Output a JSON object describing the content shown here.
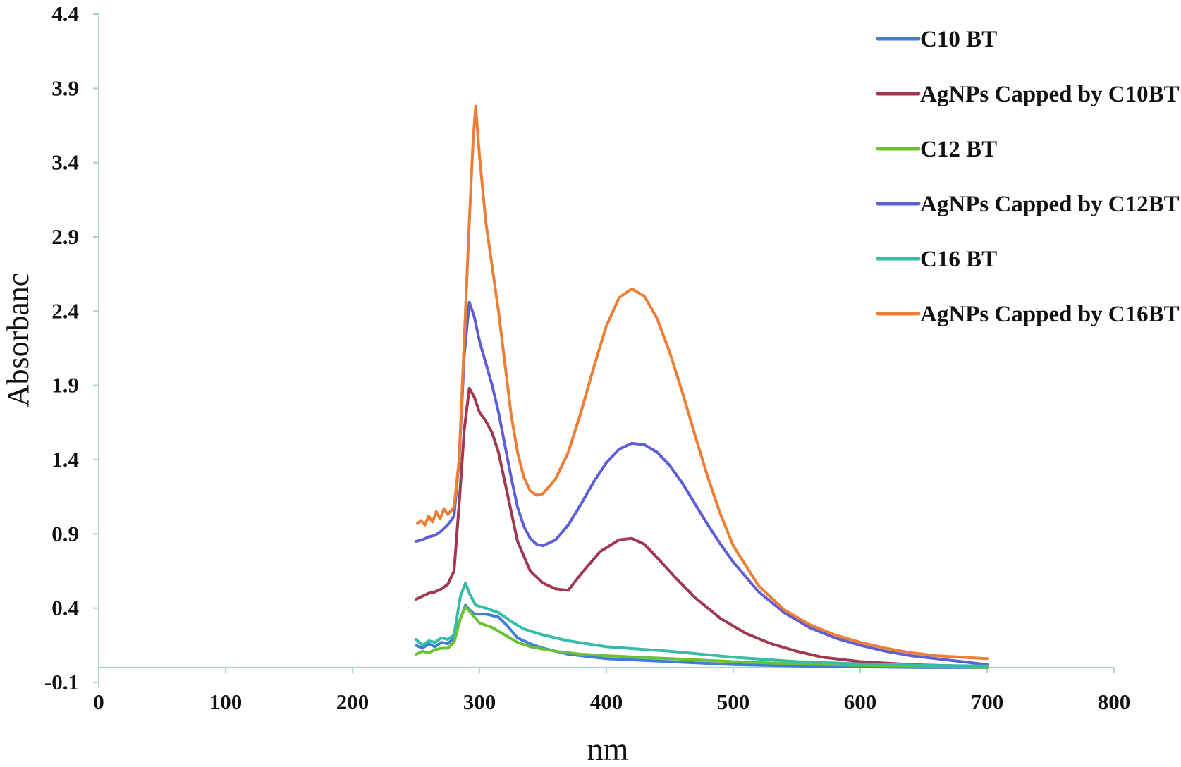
{
  "chart_data": {
    "type": "line",
    "title": "",
    "xlabel": "nm",
    "ylabel": "Absorbanc",
    "xlim": [
      0,
      800
    ],
    "ylim": [
      -0.1,
      4.4
    ],
    "xticks": [
      0,
      100,
      200,
      300,
      400,
      500,
      600,
      700,
      800
    ],
    "yticks": [
      "-0.1",
      "0.4",
      "0.9",
      "1.4",
      "1.9",
      "2.4",
      "2.9",
      "3.4",
      "3.9",
      "4.4"
    ],
    "legend_position": "top-right",
    "series": [
      {
        "name": "C10 BT",
        "color": "#3d7fd6",
        "points": [
          [
            250,
            0.15
          ],
          [
            255,
            0.13
          ],
          [
            260,
            0.16
          ],
          [
            265,
            0.14
          ],
          [
            270,
            0.17
          ],
          [
            275,
            0.16
          ],
          [
            280,
            0.2
          ],
          [
            285,
            0.33
          ],
          [
            289,
            0.42
          ],
          [
            292,
            0.39
          ],
          [
            296,
            0.36
          ],
          [
            305,
            0.36
          ],
          [
            315,
            0.34
          ],
          [
            322,
            0.28
          ],
          [
            330,
            0.2
          ],
          [
            340,
            0.16
          ],
          [
            350,
            0.13
          ],
          [
            370,
            0.09
          ],
          [
            400,
            0.06
          ],
          [
            450,
            0.04
          ],
          [
            500,
            0.02
          ],
          [
            550,
            0.01
          ],
          [
            600,
            0.005
          ],
          [
            650,
            0.0
          ],
          [
            700,
            0.0
          ]
        ]
      },
      {
        "name": "AgNPs Capped by C10BT",
        "color": "#a03852",
        "points": [
          [
            250,
            0.46
          ],
          [
            255,
            0.48
          ],
          [
            260,
            0.5
          ],
          [
            265,
            0.51
          ],
          [
            270,
            0.53
          ],
          [
            275,
            0.56
          ],
          [
            280,
            0.65
          ],
          [
            284,
            1.1
          ],
          [
            288,
            1.6
          ],
          [
            292,
            1.88
          ],
          [
            296,
            1.82
          ],
          [
            300,
            1.72
          ],
          [
            305,
            1.66
          ],
          [
            310,
            1.58
          ],
          [
            315,
            1.45
          ],
          [
            320,
            1.25
          ],
          [
            325,
            1.05
          ],
          [
            330,
            0.85
          ],
          [
            340,
            0.65
          ],
          [
            350,
            0.57
          ],
          [
            360,
            0.53
          ],
          [
            370,
            0.52
          ],
          [
            380,
            0.63
          ],
          [
            395,
            0.78
          ],
          [
            410,
            0.86
          ],
          [
            420,
            0.87
          ],
          [
            430,
            0.83
          ],
          [
            440,
            0.74
          ],
          [
            455,
            0.6
          ],
          [
            470,
            0.47
          ],
          [
            490,
            0.33
          ],
          [
            510,
            0.23
          ],
          [
            530,
            0.16
          ],
          [
            550,
            0.11
          ],
          [
            570,
            0.07
          ],
          [
            600,
            0.04
          ],
          [
            640,
            0.02
          ],
          [
            680,
            0.01
          ],
          [
            700,
            0.005
          ]
        ]
      },
      {
        "name": "C12 BT",
        "color": "#6ac232",
        "points": [
          [
            250,
            0.09
          ],
          [
            255,
            0.11
          ],
          [
            260,
            0.1
          ],
          [
            265,
            0.12
          ],
          [
            270,
            0.13
          ],
          [
            275,
            0.13
          ],
          [
            280,
            0.17
          ],
          [
            285,
            0.33
          ],
          [
            289,
            0.41
          ],
          [
            293,
            0.37
          ],
          [
            300,
            0.3
          ],
          [
            310,
            0.27
          ],
          [
            320,
            0.22
          ],
          [
            330,
            0.17
          ],
          [
            340,
            0.14
          ],
          [
            360,
            0.11
          ],
          [
            380,
            0.09
          ],
          [
            400,
            0.08
          ],
          [
            450,
            0.06
          ],
          [
            500,
            0.04
          ],
          [
            550,
            0.025
          ],
          [
            600,
            0.015
          ],
          [
            650,
            0.01
          ],
          [
            700,
            0.0
          ]
        ]
      },
      {
        "name": "AgNPs Capped by C12BT",
        "color": "#5e5fd6",
        "points": [
          [
            250,
            0.85
          ],
          [
            255,
            0.86
          ],
          [
            260,
            0.88
          ],
          [
            265,
            0.89
          ],
          [
            270,
            0.92
          ],
          [
            275,
            0.96
          ],
          [
            280,
            1.02
          ],
          [
            284,
            1.4
          ],
          [
            288,
            2.1
          ],
          [
            292,
            2.46
          ],
          [
            296,
            2.36
          ],
          [
            300,
            2.2
          ],
          [
            305,
            2.05
          ],
          [
            310,
            1.9
          ],
          [
            315,
            1.72
          ],
          [
            320,
            1.5
          ],
          [
            325,
            1.28
          ],
          [
            330,
            1.08
          ],
          [
            335,
            0.95
          ],
          [
            340,
            0.87
          ],
          [
            345,
            0.83
          ],
          [
            350,
            0.82
          ],
          [
            360,
            0.86
          ],
          [
            370,
            0.96
          ],
          [
            380,
            1.1
          ],
          [
            390,
            1.25
          ],
          [
            400,
            1.38
          ],
          [
            410,
            1.47
          ],
          [
            420,
            1.51
          ],
          [
            430,
            1.5
          ],
          [
            440,
            1.45
          ],
          [
            450,
            1.36
          ],
          [
            460,
            1.24
          ],
          [
            470,
            1.1
          ],
          [
            480,
            0.96
          ],
          [
            490,
            0.83
          ],
          [
            500,
            0.71
          ],
          [
            520,
            0.51
          ],
          [
            540,
            0.37
          ],
          [
            560,
            0.27
          ],
          [
            580,
            0.2
          ],
          [
            600,
            0.15
          ],
          [
            620,
            0.11
          ],
          [
            640,
            0.08
          ],
          [
            660,
            0.06
          ],
          [
            680,
            0.04
          ],
          [
            700,
            0.02
          ]
        ]
      },
      {
        "name": "C16 BT",
        "color": "#36bca8",
        "points": [
          [
            250,
            0.19
          ],
          [
            255,
            0.15
          ],
          [
            260,
            0.18
          ],
          [
            265,
            0.17
          ],
          [
            270,
            0.2
          ],
          [
            275,
            0.19
          ],
          [
            280,
            0.22
          ],
          [
            285,
            0.48
          ],
          [
            289,
            0.57
          ],
          [
            292,
            0.5
          ],
          [
            297,
            0.42
          ],
          [
            305,
            0.4
          ],
          [
            315,
            0.37
          ],
          [
            325,
            0.31
          ],
          [
            335,
            0.26
          ],
          [
            350,
            0.22
          ],
          [
            370,
            0.18
          ],
          [
            400,
            0.14
          ],
          [
            450,
            0.11
          ],
          [
            500,
            0.07
          ],
          [
            550,
            0.04
          ],
          [
            600,
            0.025
          ],
          [
            650,
            0.015
          ],
          [
            700,
            0.01
          ]
        ]
      },
      {
        "name": "AgNPs Capped by C16BT",
        "color": "#ec7f35",
        "points": [
          [
            251,
            0.97
          ],
          [
            254,
            0.99
          ],
          [
            257,
            0.96
          ],
          [
            260,
            1.02
          ],
          [
            263,
            0.98
          ],
          [
            266,
            1.05
          ],
          [
            269,
            1.0
          ],
          [
            272,
            1.07
          ],
          [
            275,
            1.03
          ],
          [
            280,
            1.08
          ],
          [
            284,
            1.4
          ],
          [
            288,
            2.2
          ],
          [
            292,
            3.0
          ],
          [
            295,
            3.55
          ],
          [
            297,
            3.78
          ],
          [
            300,
            3.45
          ],
          [
            305,
            3.0
          ],
          [
            310,
            2.7
          ],
          [
            315,
            2.4
          ],
          [
            320,
            2.05
          ],
          [
            325,
            1.7
          ],
          [
            330,
            1.45
          ],
          [
            335,
            1.28
          ],
          [
            340,
            1.19
          ],
          [
            345,
            1.16
          ],
          [
            350,
            1.17
          ],
          [
            360,
            1.27
          ],
          [
            370,
            1.45
          ],
          [
            380,
            1.72
          ],
          [
            390,
            2.02
          ],
          [
            400,
            2.3
          ],
          [
            410,
            2.49
          ],
          [
            420,
            2.55
          ],
          [
            430,
            2.5
          ],
          [
            440,
            2.35
          ],
          [
            450,
            2.12
          ],
          [
            460,
            1.85
          ],
          [
            470,
            1.56
          ],
          [
            480,
            1.28
          ],
          [
            490,
            1.03
          ],
          [
            500,
            0.82
          ],
          [
            520,
            0.55
          ],
          [
            540,
            0.39
          ],
          [
            560,
            0.29
          ],
          [
            580,
            0.22
          ],
          [
            600,
            0.17
          ],
          [
            620,
            0.13
          ],
          [
            640,
            0.1
          ],
          [
            660,
            0.08
          ],
          [
            680,
            0.07
          ],
          [
            700,
            0.06
          ]
        ]
      }
    ]
  }
}
